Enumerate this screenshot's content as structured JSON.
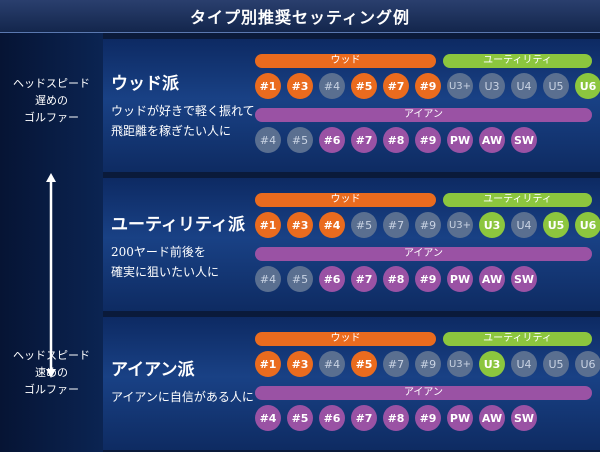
{
  "title": "タイプ別推奨セッティング例",
  "speed_top": [
    "ヘッドスピード",
    "遅めの",
    "ゴルファー"
  ],
  "speed_bottom": [
    "ヘッドスピード",
    "速めの",
    "ゴルファー"
  ],
  "bars": {
    "wood": "ウッド",
    "utility": "ユーティリティ",
    "iron": "アイアン"
  },
  "sections": [
    {
      "title": "ウッド派",
      "desc": [
        "ウッドが好きで軽く振れて",
        "飛距離を稼ぎたい人に"
      ],
      "woods": [
        {
          "label": "#1",
          "on": true
        },
        {
          "label": "#3",
          "on": true
        },
        {
          "label": "#4",
          "on": false
        },
        {
          "label": "#5",
          "on": true
        },
        {
          "label": "#7",
          "on": true
        },
        {
          "label": "#9",
          "on": true
        }
      ],
      "utilities": [
        {
          "label": "U3+",
          "on": false
        },
        {
          "label": "U3",
          "on": false
        },
        {
          "label": "U4",
          "on": false
        },
        {
          "label": "U5",
          "on": false
        },
        {
          "label": "U6",
          "on": true
        }
      ],
      "irons": [
        {
          "label": "#4",
          "on": false
        },
        {
          "label": "#5",
          "on": false
        },
        {
          "label": "#6",
          "on": true
        },
        {
          "label": "#7",
          "on": true
        },
        {
          "label": "#8",
          "on": true
        },
        {
          "label": "#9",
          "on": true
        },
        {
          "label": "PW",
          "on": true
        },
        {
          "label": "AW",
          "on": true
        },
        {
          "label": "SW",
          "on": true
        }
      ]
    },
    {
      "title": "ユーティリティ派",
      "desc": [
        "200ヤード前後を",
        "確実に狙いたい人に"
      ],
      "woods": [
        {
          "label": "#1",
          "on": true
        },
        {
          "label": "#3",
          "on": true
        },
        {
          "label": "#4",
          "on": true
        },
        {
          "label": "#5",
          "on": false
        },
        {
          "label": "#7",
          "on": false
        },
        {
          "label": "#9",
          "on": false
        }
      ],
      "utilities": [
        {
          "label": "U3+",
          "on": false
        },
        {
          "label": "U3",
          "on": true
        },
        {
          "label": "U4",
          "on": false
        },
        {
          "label": "U5",
          "on": true
        },
        {
          "label": "U6",
          "on": true
        }
      ],
      "irons": [
        {
          "label": "#4",
          "on": false
        },
        {
          "label": "#5",
          "on": false
        },
        {
          "label": "#6",
          "on": true
        },
        {
          "label": "#7",
          "on": true
        },
        {
          "label": "#8",
          "on": true
        },
        {
          "label": "#9",
          "on": true
        },
        {
          "label": "PW",
          "on": true
        },
        {
          "label": "AW",
          "on": true
        },
        {
          "label": "SW",
          "on": true
        }
      ]
    },
    {
      "title": "アイアン派",
      "desc": [
        "アイアンに自信がある人に"
      ],
      "woods": [
        {
          "label": "#1",
          "on": true
        },
        {
          "label": "#3",
          "on": true
        },
        {
          "label": "#4",
          "on": false
        },
        {
          "label": "#5",
          "on": true
        },
        {
          "label": "#7",
          "on": false
        },
        {
          "label": "#9",
          "on": false
        }
      ],
      "utilities": [
        {
          "label": "U3+",
          "on": false
        },
        {
          "label": "U3",
          "on": true
        },
        {
          "label": "U4",
          "on": false
        },
        {
          "label": "U5",
          "on": false
        },
        {
          "label": "U6",
          "on": false
        }
      ],
      "irons": [
        {
          "label": "#4",
          "on": true
        },
        {
          "label": "#5",
          "on": true
        },
        {
          "label": "#6",
          "on": true
        },
        {
          "label": "#7",
          "on": true
        },
        {
          "label": "#8",
          "on": true
        },
        {
          "label": "#9",
          "on": true
        },
        {
          "label": "PW",
          "on": true
        },
        {
          "label": "AW",
          "on": true
        },
        {
          "label": "SW",
          "on": true
        }
      ]
    }
  ],
  "colors": {
    "wood": "#ea6b1e",
    "utility": "#8cc63e",
    "iron": "#9a52a4",
    "off": "#5a6f90"
  }
}
